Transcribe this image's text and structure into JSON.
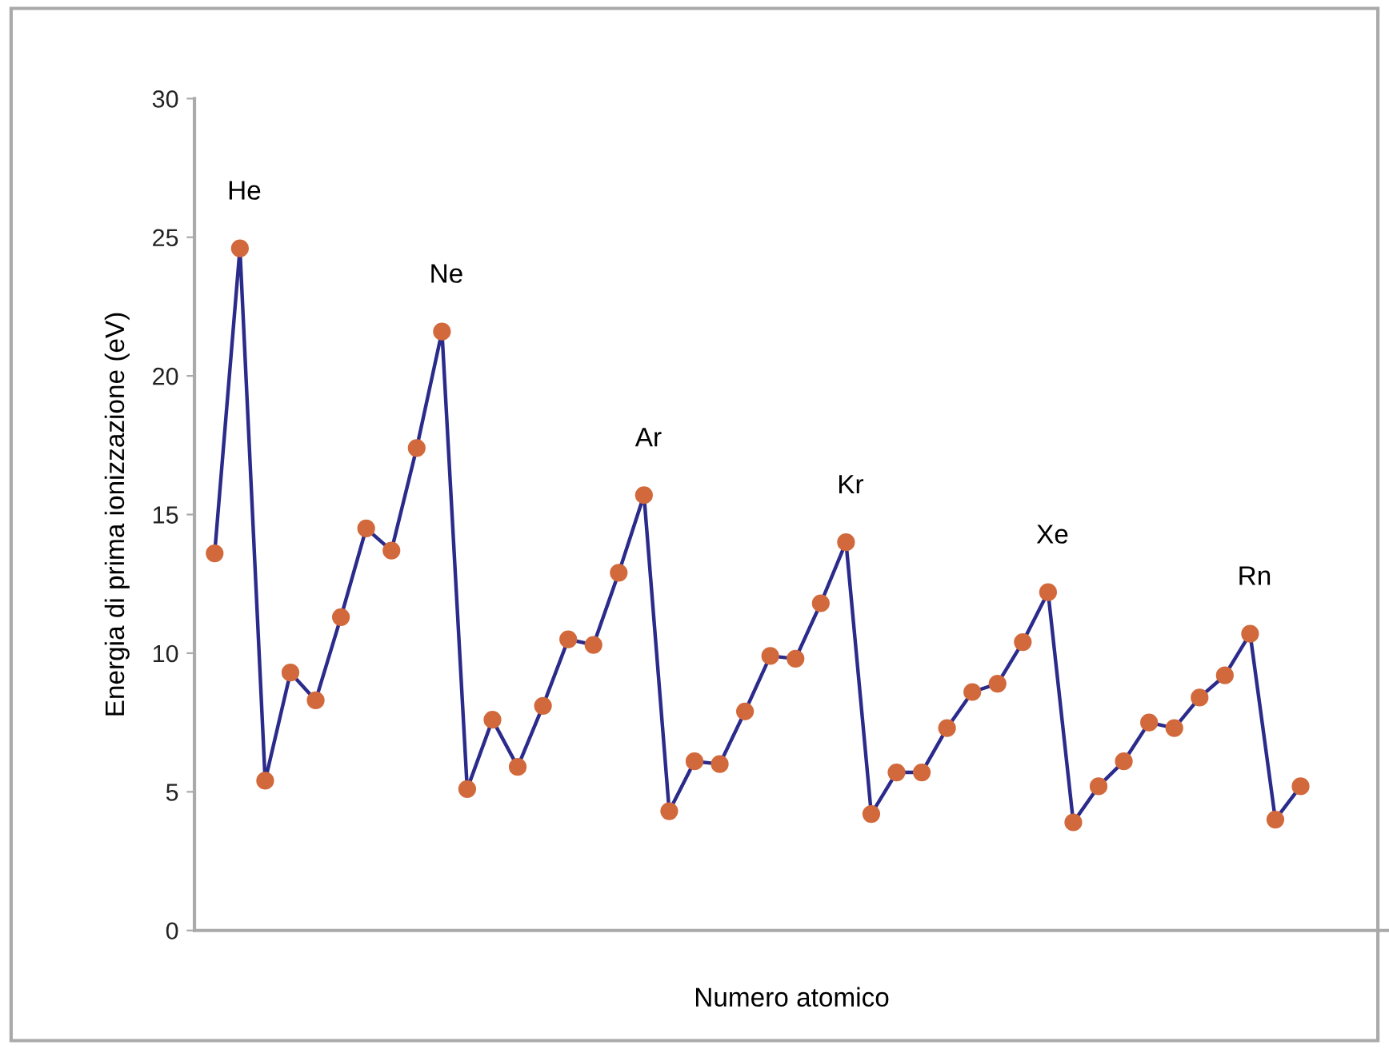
{
  "chart_data": {
    "type": "line",
    "xlabel": "Numero atomico",
    "ylabel": "Energia di prima ionizzazione (eV)",
    "categories": [
      null,
      null,
      null,
      null,
      null,
      null,
      null,
      null,
      null,
      null,
      null,
      null,
      null,
      null,
      null,
      null,
      null,
      null,
      null,
      null,
      null,
      null,
      null,
      null,
      null,
      null,
      null,
      null,
      null,
      null,
      null,
      null,
      null,
      null,
      null,
      null,
      null,
      null,
      null,
      null,
      null,
      null,
      null,
      null
    ],
    "series": [
      {
        "color": "#2b2b8c",
        "colors": [
          "#d2693c",
          "#d2693c",
          "#d2693c",
          "#d2693c",
          "#d2693c",
          "#d2693c",
          "#d2693c",
          "#d2693c",
          "#d2693c",
          "#d2693c",
          "#d2693c",
          "#d2693c",
          "#d2693c",
          "#d2693c",
          "#d2693c",
          "#d2693c",
          "#d2693c",
          "#d2693c",
          "#d2693c",
          "#d2693c",
          "#d2693c",
          "#d2693c",
          "#d2693c",
          "#d2693c",
          "#d2693c",
          "#d2693c",
          "#d2693c",
          "#d2693c",
          "#d2693c",
          "#d2693c",
          "#d2693c",
          "#d2693c",
          "#d2693c",
          "#d2693c",
          "#d2693c",
          "#d2693c",
          "#d2693c",
          "#d2693c",
          "#d2693c",
          "#d2693c",
          "#d2693c",
          "#d2693c",
          "#d2693c",
          "#d2693c"
        ],
        "values": [
          13.6,
          24.6,
          5.4,
          9.3,
          8.3,
          11.3,
          14.5,
          13.7,
          17.4,
          21.6,
          5.1,
          7.6,
          5.9,
          8.1,
          10.5,
          10.3,
          12.9,
          15.7,
          4.3,
          6.1,
          6.0,
          7.9,
          9.9,
          9.8,
          11.8,
          14.0,
          4.2,
          5.7,
          5.7,
          7.3,
          8.6,
          8.9,
          10.4,
          12.2,
          3.9,
          5.2,
          6.1,
          7.5,
          7.3,
          8.4,
          9.2,
          10.7,
          4.0,
          5.2
        ]
      }
    ],
    "ylim": [
      0,
      30
    ],
    "yticks": [
      0,
      5,
      10,
      15,
      20,
      25,
      30
    ],
    "grid": false,
    "legend": false,
    "marker": "circle",
    "line_style": "solid",
    "annotations": [
      {
        "text": "He",
        "y": 24.6
      },
      {
        "text": "Ne",
        "y": 21.6
      },
      {
        "text": "Ar",
        "y": 15.7
      },
      {
        "text": "Kr",
        "y": 14.0
      },
      {
        "text": "Xe",
        "y": 12.2
      },
      {
        "text": "Rn",
        "y": 10.7
      }
    ]
  }
}
